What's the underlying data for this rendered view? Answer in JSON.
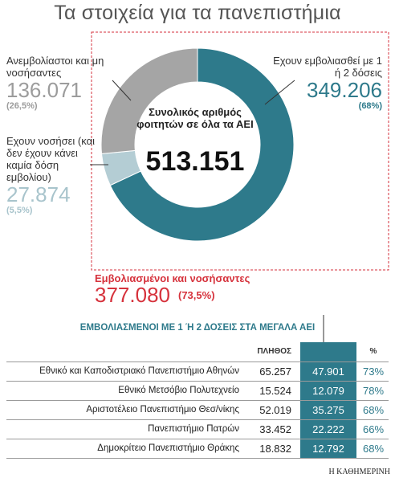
{
  "title": "Τα στοιχεία για τα πανεπιστήμια",
  "colors": {
    "vaccinated": "#2e7a8b",
    "recovered": "#b4cdd4",
    "unvaccinated": "#a5a5a5",
    "highlight": "#d6323c"
  },
  "chart_data": [
    {
      "type": "pie",
      "center_text": "Συνολικός αριθμός φοιτητών σε όλα τα ΑΕΙ",
      "center_value": "513.151",
      "slices": [
        {
          "label": "Εχουν εμβολιασθεί με 1 ή 2 δόσεις",
          "value": 349206,
          "value_text": "349.206",
          "percent": "(68%)"
        },
        {
          "label": "Εχουν νοσήσει (και δεν έχουν κάνει καμία δόση εμβολίου)",
          "value": 27874,
          "value_text": "27.874",
          "percent": "(5,5%)"
        },
        {
          "label": "Ανεμβολίαστοι και μη νοσήσαντες",
          "value": 136071,
          "value_text": "136.071",
          "percent": "(26,5%)"
        }
      ],
      "annotation": {
        "label": "Εμβολιασμένοι και νοσήσαντες",
        "value_text": "377.080",
        "percent": "(73,5%)"
      }
    },
    {
      "type": "table",
      "title": "ΕΜΒΟΛΙΑΣΜΕΝΟΙ ΜΕ 1 Ή 2 ΔΟΣΕΙΣ ΣΤΑ ΜΕΓΑΛΑ ΑΕΙ",
      "columns": [
        "",
        "ΠΛΗΘΟΣ",
        "",
        "%"
      ],
      "rows": [
        {
          "name": "Εθνικό και Καποδιστριακό Πανεπιστήμιο Αθηνών",
          "total": "65.257",
          "vaccinated": "47.901",
          "percent": "73%"
        },
        {
          "name": "Εθνικό Μετσόβιο Πολυτεχνείο",
          "total": "15.524",
          "vaccinated": "12.079",
          "percent": "78%"
        },
        {
          "name": "Αριστοτέλειο Πανεπιστήμιο Θεσ/νίκης",
          "total": "52.019",
          "vaccinated": "35.275",
          "percent": "68%"
        },
        {
          "name": "Πανεπιστήμιο Πατρών",
          "total": "33.452",
          "vaccinated": "22.222",
          "percent": "66%"
        },
        {
          "name": "Δημοκρίτειο Πανεπιστήμιο Θράκης",
          "total": "18.832",
          "vaccinated": "12.792",
          "percent": "68%"
        }
      ]
    }
  ],
  "source": "Η ΚΑΘΗΜΕΡΙΝΗ"
}
